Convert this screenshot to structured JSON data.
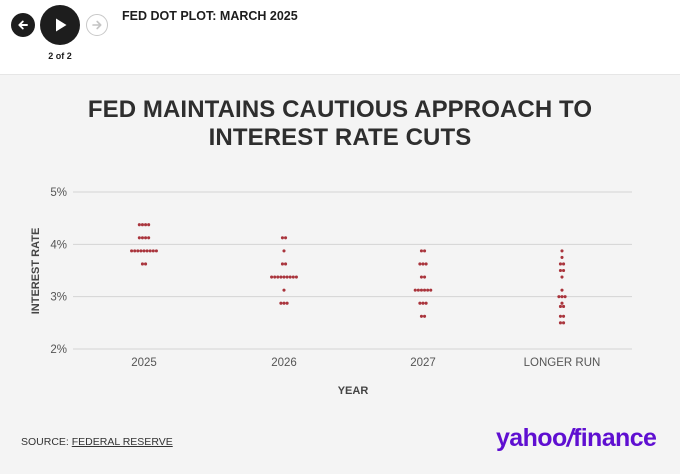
{
  "header": {
    "title": "FED DOT PLOT: MARCH 2025",
    "counter": "2 of 2",
    "prev_icon": "arrow-left-icon",
    "play_icon": "play-icon",
    "next_icon": "arrow-right-icon"
  },
  "headline": {
    "line1": "FED MAINTAINS CAUTIOUS APPROACH TO",
    "line2": "INTEREST RATE CUTS"
  },
  "chart_data": {
    "type": "scatter",
    "title": "",
    "xlabel": "YEAR",
    "ylabel": "INTEREST RATE",
    "categories": [
      "2025",
      "2026",
      "2027",
      "LONGER RUN"
    ],
    "ylim": [
      2,
      5
    ],
    "yticks": [
      "2%",
      "3%",
      "4%",
      "5%"
    ],
    "ytick_values": [
      2,
      3,
      4,
      5
    ],
    "grid": true,
    "dot_color": "#a9343c",
    "dots": [
      {
        "category": "2025",
        "levels": [
          {
            "rate": 4.375,
            "count": 4
          },
          {
            "rate": 4.125,
            "count": 4
          },
          {
            "rate": 3.875,
            "count": 9
          },
          {
            "rate": 3.625,
            "count": 2
          }
        ]
      },
      {
        "category": "2026",
        "levels": [
          {
            "rate": 4.125,
            "count": 2
          },
          {
            "rate": 3.875,
            "count": 1
          },
          {
            "rate": 3.625,
            "count": 2
          },
          {
            "rate": 3.375,
            "count": 9
          },
          {
            "rate": 3.125,
            "count": 1
          },
          {
            "rate": 2.875,
            "count": 3
          }
        ]
      },
      {
        "category": "2027",
        "levels": [
          {
            "rate": 3.875,
            "count": 2
          },
          {
            "rate": 3.625,
            "count": 3
          },
          {
            "rate": 3.375,
            "count": 2
          },
          {
            "rate": 3.125,
            "count": 6
          },
          {
            "rate": 2.875,
            "count": 3
          },
          {
            "rate": 2.625,
            "count": 2
          }
        ]
      },
      {
        "category": "LONGER RUN",
        "levels": [
          {
            "rate": 3.875,
            "count": 1
          },
          {
            "rate": 3.75,
            "count": 1
          },
          {
            "rate": 3.625,
            "count": 2
          },
          {
            "rate": 3.5,
            "count": 2
          },
          {
            "rate": 3.375,
            "count": 1
          },
          {
            "rate": 3.125,
            "count": 1
          },
          {
            "rate": 3.0,
            "count": 3
          },
          {
            "rate": 2.875,
            "count": 1
          },
          {
            "rate": 2.8125,
            "count": 2
          },
          {
            "rate": 2.625,
            "count": 2
          },
          {
            "rate": 2.5,
            "count": 2
          }
        ]
      }
    ]
  },
  "footer": {
    "source_label": "SOURCE: ",
    "source_link": "FEDERAL RESERVE",
    "logo_text_1": "yahoo",
    "logo_slash": "/",
    "logo_text_2": "finance"
  }
}
